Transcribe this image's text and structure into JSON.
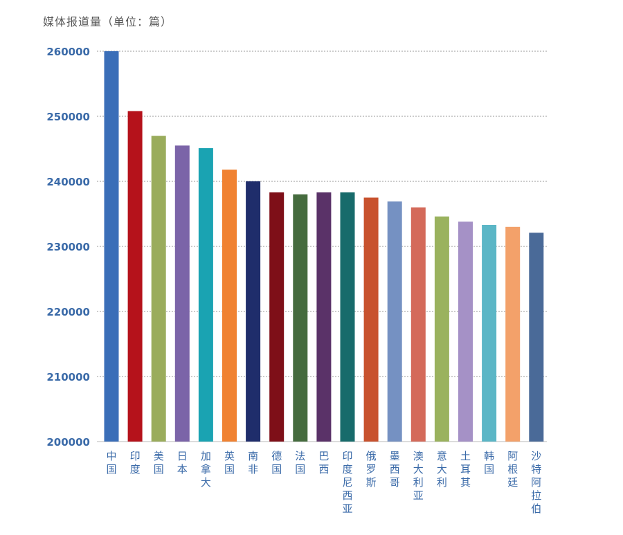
{
  "chart_data": {
    "type": "bar",
    "title": "",
    "ylabel": "媒体报道量（单位：篇）",
    "xlabel": "",
    "ylim": [
      200000,
      260000
    ],
    "yticks": [
      200000,
      210000,
      220000,
      230000,
      240000,
      250000,
      260000
    ],
    "grid": true,
    "categories": [
      "中国",
      "印度",
      "美国",
      "日本",
      "加拿大",
      "英国",
      "南非",
      "德国",
      "法国",
      "巴西",
      "印度尼西亚",
      "俄罗斯",
      "墨西哥",
      "澳大利亚",
      "意大利",
      "土耳其",
      "韩国",
      "阿根廷",
      "沙特阿拉伯"
    ],
    "values": [
      260000,
      250800,
      247000,
      245500,
      245100,
      241800,
      240000,
      238300,
      238000,
      238300,
      238300,
      237500,
      236900,
      236000,
      234600,
      233800,
      233300,
      233000,
      232100
    ],
    "colors": [
      "#3a6eb8",
      "#b5121b",
      "#9aac5c",
      "#7b64a8",
      "#1aa3b2",
      "#f08232",
      "#1f2d6b",
      "#7e0f18",
      "#456b3e",
      "#5a3268",
      "#176b6b",
      "#c8522e",
      "#7591c2",
      "#d46a5a",
      "#9ab25e",
      "#a591c6",
      "#5bb6c6",
      "#f3a16a",
      "#4a6a98"
    ]
  }
}
